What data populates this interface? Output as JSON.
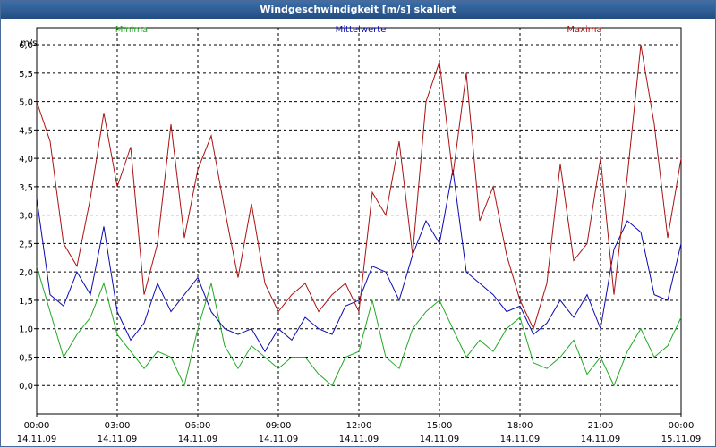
{
  "window": {
    "title": "Windgeschwindigkeit [m/s] skaliert"
  },
  "colors": {
    "min": "#22aa22",
    "mean": "#0a0ab0",
    "max": "#aa1111",
    "grid": "#000000",
    "title_bg": "#2a5a96"
  },
  "chart_data": {
    "type": "line",
    "title": "Windgeschwindigkeit [m/s] skaliert",
    "ylabel": "m/s",
    "xlabel": "",
    "ylim": [
      -0.5,
      6.3
    ],
    "xlim": [
      0,
      24
    ],
    "grid": true,
    "legend_placement": "top",
    "y_ticks": [
      "0,0",
      "0,5",
      "1,0",
      "1,5",
      "2,0",
      "2,5",
      "3,0",
      "3,5",
      "4,0",
      "4,5",
      "5,0",
      "5,5",
      "6,0"
    ],
    "y_tick_values": [
      0,
      0.5,
      1,
      1.5,
      2,
      2.5,
      3,
      3.5,
      4,
      4.5,
      5,
      5.5,
      6
    ],
    "x_ticks": [
      {
        "time": "00:00",
        "date": "14.11.09"
      },
      {
        "time": "03:00",
        "date": "14.11.09"
      },
      {
        "time": "06:00",
        "date": "14.11.09"
      },
      {
        "time": "09:00",
        "date": "14.11.09"
      },
      {
        "time": "12:00",
        "date": "14.11.09"
      },
      {
        "time": "15:00",
        "date": "14.11.09"
      },
      {
        "time": "18:00",
        "date": "14.11.09"
      },
      {
        "time": "21:00",
        "date": "14.11.09"
      },
      {
        "time": "00:00",
        "date": "15.11.09"
      }
    ],
    "x_tick_hours": [
      0,
      3,
      6,
      9,
      12,
      15,
      18,
      21,
      24
    ],
    "x_hours": [
      0.0,
      0.5,
      1.0,
      1.5,
      2.0,
      2.5,
      3.0,
      3.5,
      4.0,
      4.5,
      5.0,
      5.5,
      6.0,
      6.5,
      7.0,
      7.5,
      8.0,
      8.5,
      9.0,
      9.5,
      10.0,
      10.5,
      11.0,
      11.5,
      12.0,
      12.5,
      13.0,
      13.5,
      14.0,
      14.5,
      15.0,
      15.5,
      16.0,
      16.5,
      17.0,
      17.5,
      18.0,
      18.5,
      19.0,
      19.5,
      20.0,
      20.5,
      21.0,
      21.5,
      22.0,
      22.5,
      23.0,
      23.5,
      24.0
    ],
    "series": [
      {
        "name": "Minima",
        "values": [
          2.1,
          1.3,
          0.5,
          0.9,
          1.2,
          1.8,
          0.9,
          0.6,
          0.3,
          0.6,
          0.5,
          0.0,
          1.0,
          1.8,
          0.7,
          0.3,
          0.7,
          0.5,
          0.3,
          0.5,
          0.5,
          0.2,
          0.0,
          0.5,
          0.6,
          1.5,
          0.5,
          0.3,
          1.0,
          1.3,
          1.5,
          1.0,
          0.5,
          0.8,
          0.6,
          1.0,
          1.2,
          0.4,
          0.3,
          0.5,
          0.8,
          0.2,
          0.5,
          0.0,
          0.6,
          1.0,
          0.5,
          0.7,
          1.2
        ]
      },
      {
        "name": "Mittelwerte",
        "values": [
          3.3,
          1.6,
          1.4,
          2.0,
          1.6,
          2.8,
          1.3,
          0.8,
          1.1,
          1.8,
          1.3,
          1.6,
          1.9,
          1.3,
          1.0,
          0.9,
          1.0,
          0.6,
          1.0,
          0.8,
          1.2,
          1.0,
          0.9,
          1.4,
          1.5,
          2.1,
          2.0,
          1.5,
          2.3,
          2.9,
          2.5,
          3.8,
          2.0,
          1.8,
          1.6,
          1.3,
          1.4,
          0.9,
          1.1,
          1.5,
          1.2,
          1.6,
          1.0,
          2.4,
          2.9,
          2.7,
          1.6,
          1.5,
          2.5
        ]
      },
      {
        "name": "Maxima",
        "values": [
          5.0,
          4.3,
          2.5,
          2.1,
          3.3,
          4.8,
          3.5,
          4.2,
          1.6,
          2.5,
          4.6,
          2.6,
          3.8,
          4.4,
          3.1,
          1.9,
          3.2,
          1.8,
          1.3,
          1.6,
          1.8,
          1.3,
          1.6,
          1.8,
          1.3,
          3.4,
          3.0,
          4.3,
          2.3,
          5.0,
          5.7,
          3.7,
          5.5,
          2.9,
          3.5,
          2.3,
          1.5,
          1.0,
          1.8,
          3.9,
          2.2,
          2.5,
          4.0,
          1.6,
          3.7,
          6.0,
          4.6,
          2.6,
          4.0
        ]
      }
    ]
  }
}
